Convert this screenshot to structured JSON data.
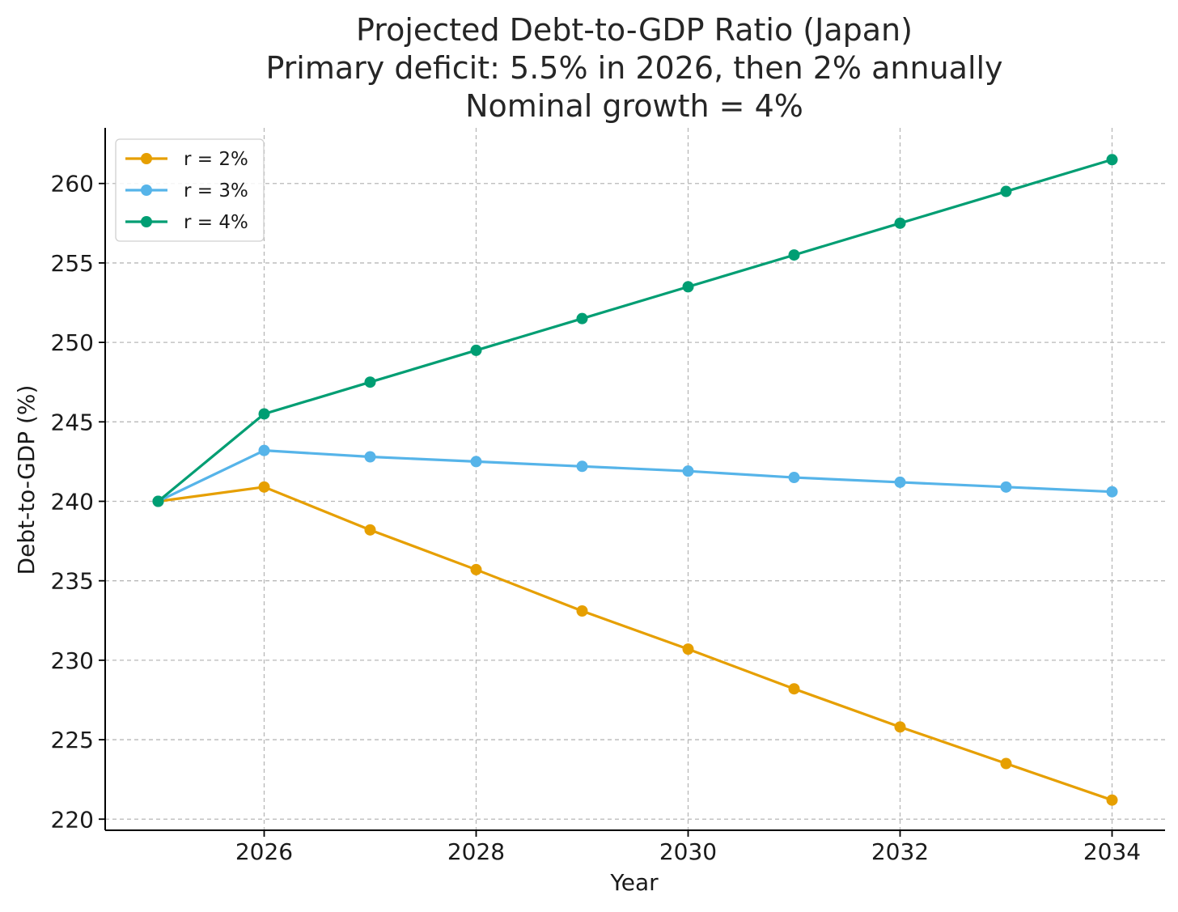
{
  "chart_data": {
    "type": "line",
    "title_lines": [
      "Projected Debt-to-GDP Ratio (Japan)",
      "Primary deficit: 5.5% in 2026, then 2% annually",
      "Nominal growth = 4%"
    ],
    "xlabel": "Year",
    "ylabel": "Debt-to-GDP (%)",
    "x": [
      2025,
      2026,
      2027,
      2028,
      2029,
      2030,
      2031,
      2032,
      2033,
      2034
    ],
    "x_ticks": [
      2026,
      2028,
      2030,
      2032,
      2034
    ],
    "x_tick_labels": [
      "2026",
      "2028",
      "2030",
      "2032",
      "2034"
    ],
    "y_ticks": [
      220,
      225,
      230,
      235,
      240,
      245,
      250,
      255,
      260
    ],
    "y_tick_labels": [
      "220",
      "225",
      "230",
      "235",
      "240",
      "245",
      "250",
      "255",
      "260"
    ],
    "xlim": [
      2024.5,
      2034.5
    ],
    "ylim": [
      219.3,
      263.5
    ],
    "grid": true,
    "legend_position": "top-left",
    "series": [
      {
        "name": "r = 2%",
        "color": "#E69F00",
        "values": [
          240.0,
          240.9,
          238.2,
          235.7,
          233.1,
          230.7,
          228.2,
          225.8,
          223.5,
          221.2
        ]
      },
      {
        "name": "r = 3%",
        "color": "#56B4E9",
        "values": [
          240.0,
          243.2,
          242.8,
          242.5,
          242.2,
          241.9,
          241.5,
          241.2,
          240.9,
          240.6
        ]
      },
      {
        "name": "r = 4%",
        "color": "#009E73",
        "values": [
          240.0,
          245.5,
          247.5,
          249.5,
          251.5,
          253.5,
          255.5,
          257.5,
          259.5,
          261.5
        ]
      }
    ]
  }
}
